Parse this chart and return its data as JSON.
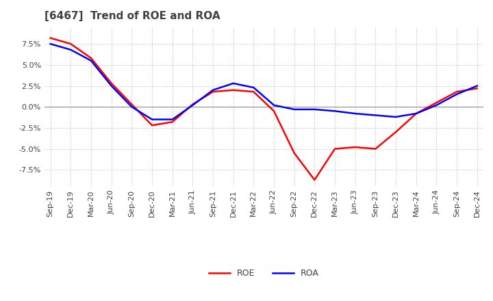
{
  "title": "[6467]  Trend of ROE and ROA",
  "title_color": "#404040",
  "background_color": "#ffffff",
  "plot_bg_color": "#ffffff",
  "grid_color": "#aaaaaa",
  "x_labels": [
    "Sep-19",
    "Dec-19",
    "Mar-20",
    "Jun-20",
    "Sep-20",
    "Dec-20",
    "Mar-21",
    "Jun-21",
    "Sep-21",
    "Dec-21",
    "Mar-22",
    "Jun-22",
    "Sep-22",
    "Dec-22",
    "Mar-23",
    "Jun-23",
    "Sep-23",
    "Dec-23",
    "Mar-24",
    "Jun-24",
    "Sep-24",
    "Dec-24"
  ],
  "roe": [
    8.2,
    7.5,
    5.8,
    2.8,
    0.3,
    -2.2,
    -1.8,
    0.3,
    1.8,
    2.0,
    1.8,
    -0.5,
    -5.5,
    -8.7,
    -5.0,
    -4.8,
    -5.0,
    -3.0,
    -0.8,
    0.5,
    1.8,
    2.2
  ],
  "roa": [
    7.5,
    6.8,
    5.5,
    2.5,
    0.0,
    -1.5,
    -1.5,
    0.2,
    2.0,
    2.8,
    2.3,
    0.2,
    -0.3,
    -0.3,
    -0.5,
    -0.8,
    -1.0,
    -1.2,
    -0.8,
    0.2,
    1.5,
    2.5
  ],
  "roe_color": "#ff0000",
  "roa_color": "#0000ff",
  "ylim": [
    -9.5,
    9.5
  ],
  "yticks": [
    -7.5,
    -5.0,
    -2.5,
    0.0,
    2.5,
    5.0,
    7.5
  ],
  "line_width": 1.8,
  "title_fontsize": 11,
  "tick_fontsize": 8,
  "legend_fontsize": 9
}
